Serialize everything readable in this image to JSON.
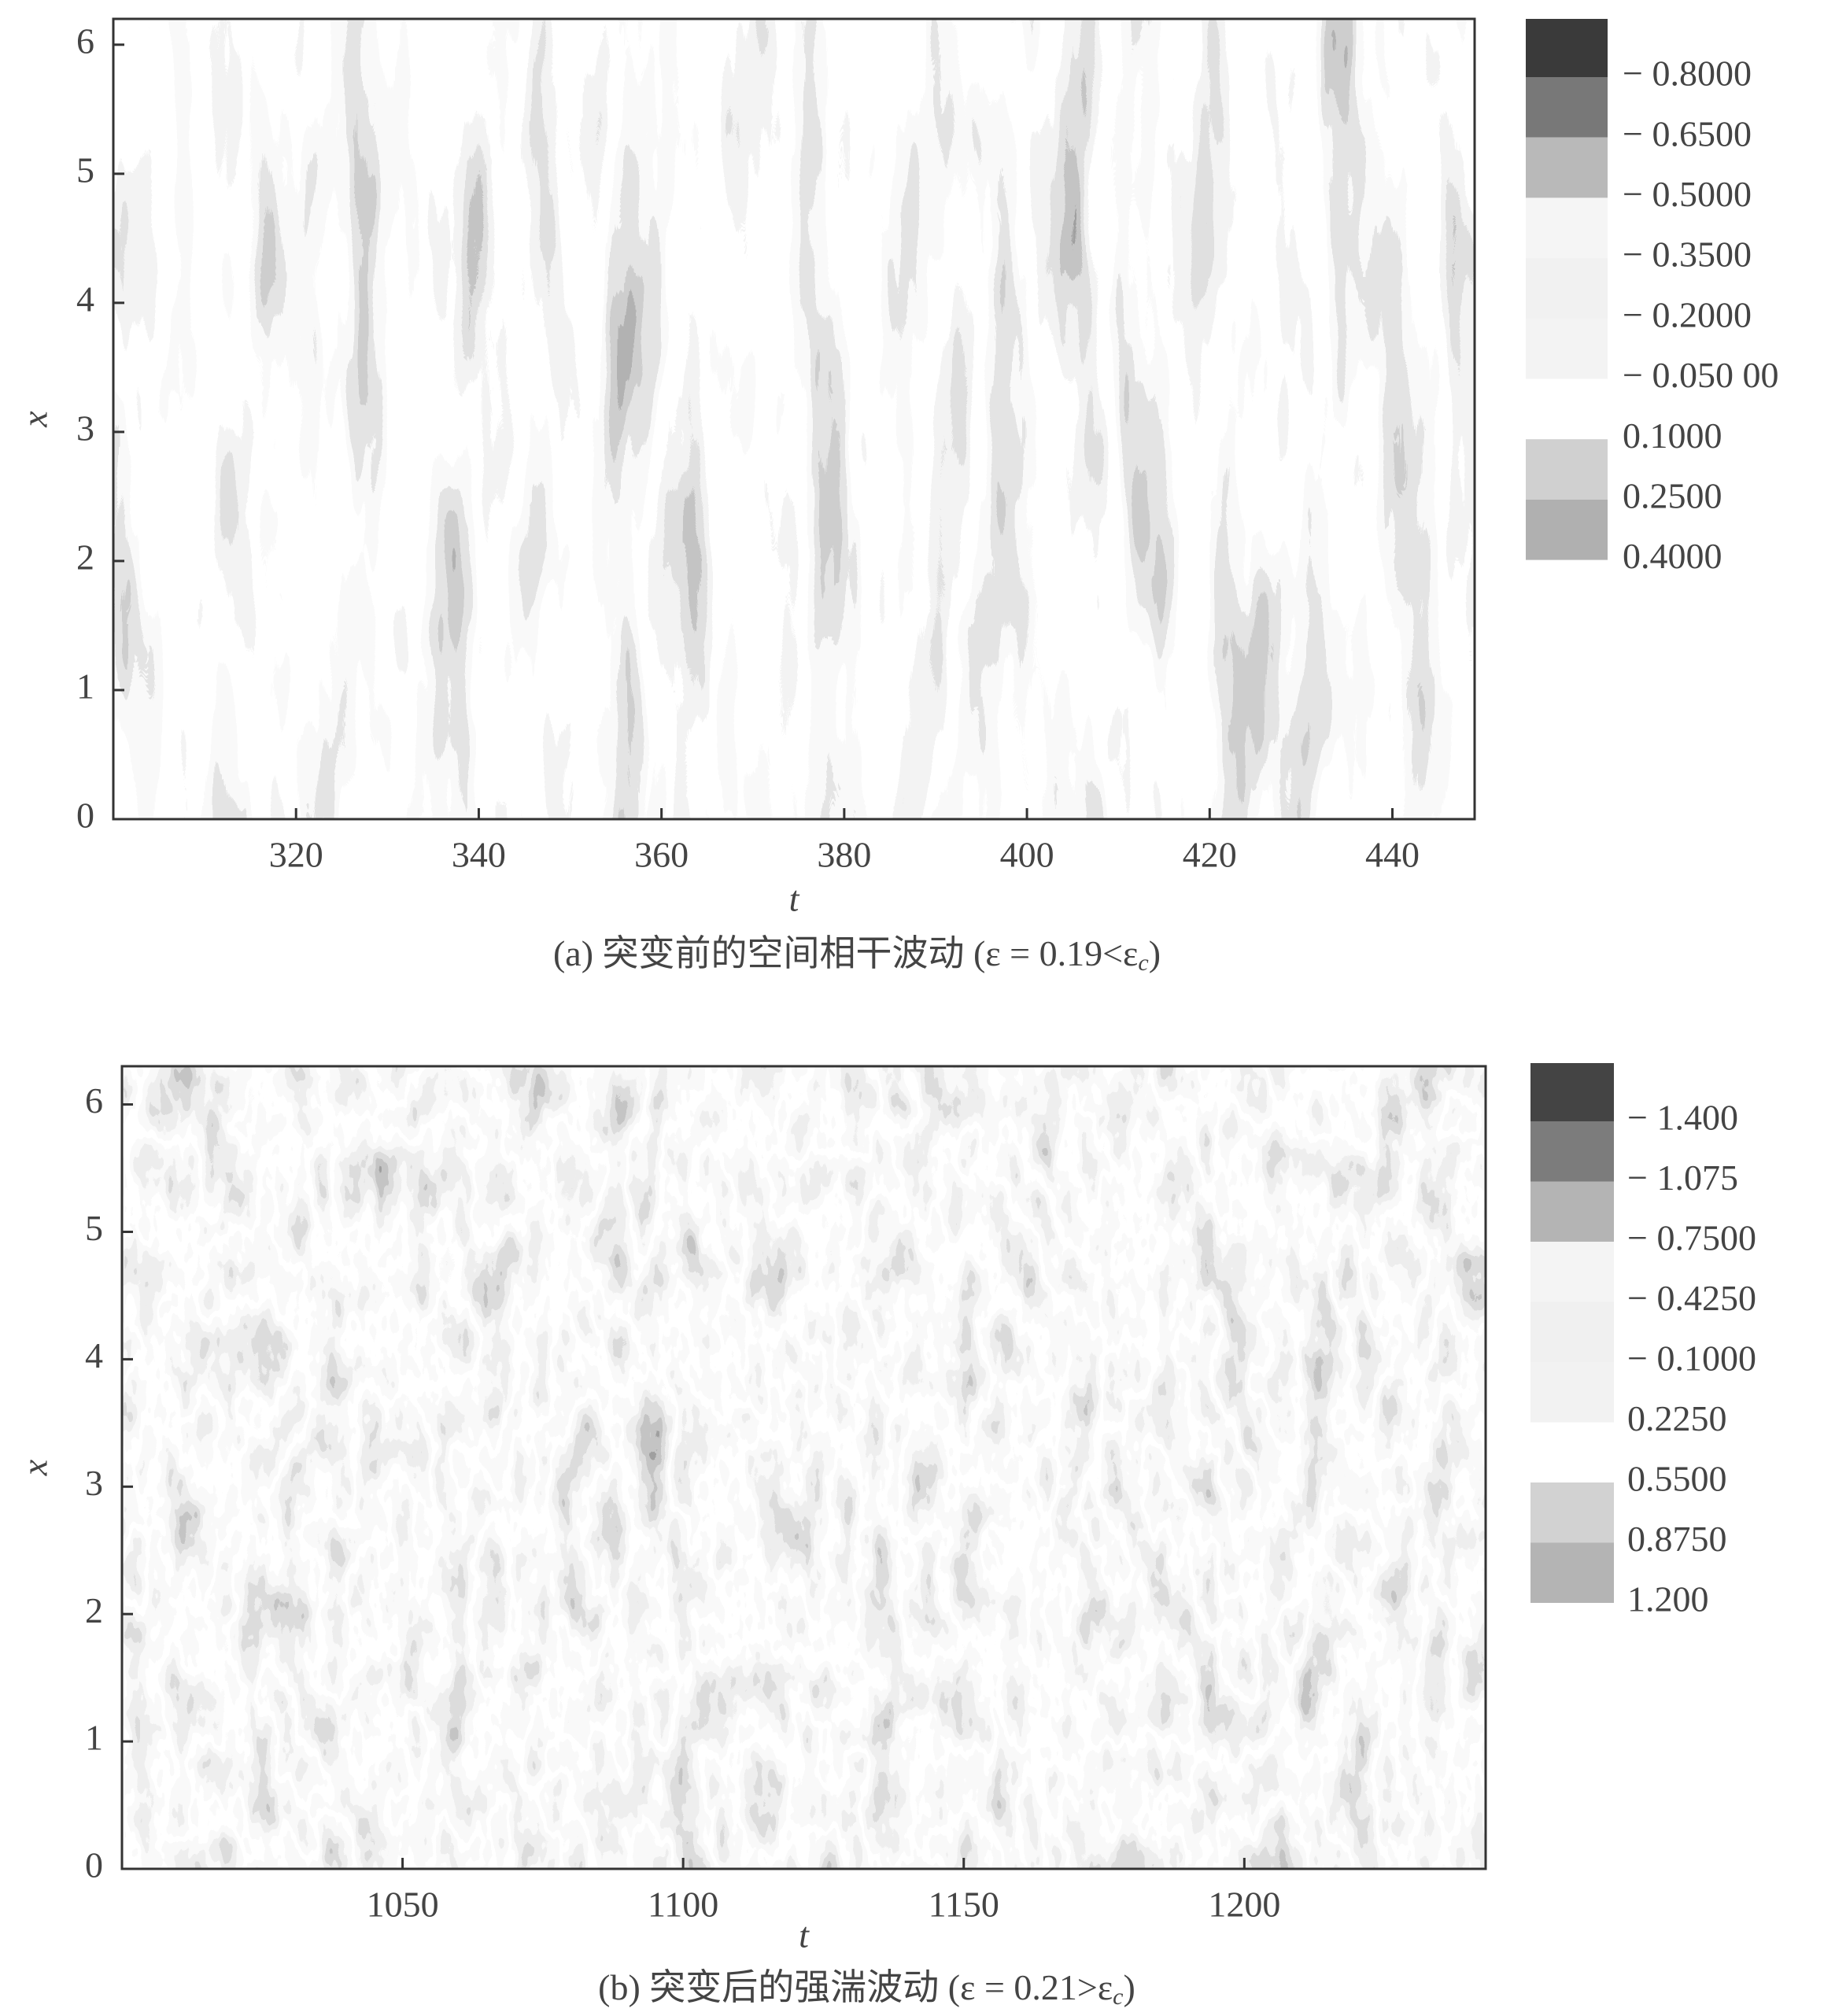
{
  "chart_data": [
    {
      "type": "contour",
      "caption": {
        "main": "(a) 突变前的空间相干波动 (ε = 0.19<ε",
        "sub": "c",
        "end": ")"
      },
      "xlabel": "t",
      "ylabel": "x",
      "xlim": [
        300,
        449
      ],
      "ylim": [
        0,
        6.2
      ],
      "xticks": [
        320,
        340,
        360,
        380,
        400,
        420,
        440
      ],
      "yticks": [
        0,
        1,
        2,
        3,
        4,
        5,
        6
      ],
      "levels": [
        {
          "value": -0.8,
          "label": "− 0.8000"
        },
        {
          "value": -0.65,
          "label": "− 0.6500"
        },
        {
          "value": -0.5,
          "label": "− 0.5000"
        },
        {
          "value": -0.35,
          "label": "− 0.3500"
        },
        {
          "value": -0.2,
          "label": "− 0.2000"
        },
        {
          "value": -0.05,
          "label": "− 0.050 00"
        },
        {
          "value": 0.1,
          "label": "0.1000"
        },
        {
          "value": 0.25,
          "label": "0.2500"
        },
        {
          "value": 0.4,
          "label": "0.4000"
        }
      ],
      "colors": [
        "#3a3a3a",
        "#787878",
        "#b9b9b9",
        "#f5f5f5",
        "#f1f1f1",
        "#f3f3f3",
        "#ffffff",
        "#d0d0d0",
        "#b0b0b0"
      ]
    },
    {
      "type": "contour",
      "caption": {
        "main": "(b) 突变后的强湍波动 (ε = 0.21>ε",
        "sub": "c",
        "end": ")"
      },
      "xlabel": "t",
      "ylabel": "x",
      "xlim": [
        1000,
        1243
      ],
      "ylim": [
        0,
        6.3
      ],
      "xticks": [
        1050,
        1100,
        1150,
        1200
      ],
      "yticks": [
        0,
        1,
        2,
        3,
        4,
        5,
        6
      ],
      "levels": [
        {
          "value": -1.4,
          "label": "− 1.400"
        },
        {
          "value": -1.075,
          "label": "− 1.075"
        },
        {
          "value": -0.75,
          "label": "− 0.7500"
        },
        {
          "value": -0.425,
          "label": "− 0.4250"
        },
        {
          "value": -0.1,
          "label": "− 0.1000"
        },
        {
          "value": 0.225,
          "label": "0.2250"
        },
        {
          "value": 0.55,
          "label": "0.5500"
        },
        {
          "value": 0.875,
          "label": "0.8750"
        },
        {
          "value": 1.2,
          "label": "1.200"
        }
      ],
      "colors": [
        "#444444",
        "#7c7c7c",
        "#b4b4b4",
        "#f4f4f4",
        "#f0f0f0",
        "#f2f2f2",
        "#ffffff",
        "#d2d2d2",
        "#b4b4b4"
      ]
    }
  ]
}
